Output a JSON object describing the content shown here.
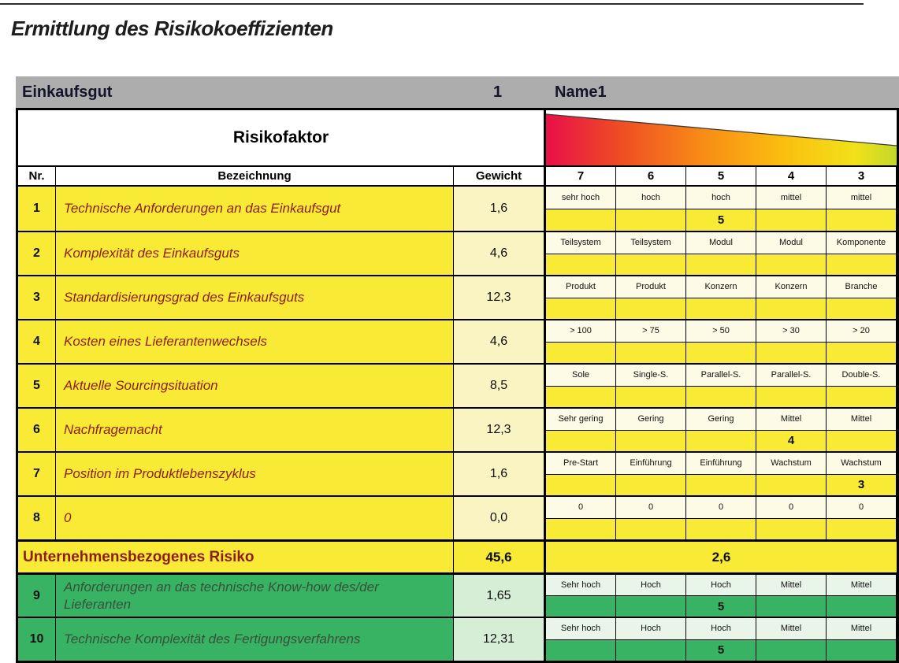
{
  "title": "Ermittlung des Risikokoeffizienten",
  "header_bar": {
    "label": "Einkaufsgut",
    "number": "1",
    "name": "Name1"
  },
  "table": {
    "section_title": "Risikofaktor",
    "col_nr": "Nr.",
    "col_bezeichnung": "Bezeichnung",
    "col_gewicht": "Gewicht",
    "scale": [
      "7",
      "6",
      "5",
      "4",
      "3"
    ],
    "rows": [
      {
        "nr": "1",
        "bezeichnung": "Technische Anforderungen an das Einkaufsgut",
        "gewicht": "1,6",
        "theme": "yellow",
        "labels": [
          "sehr hoch",
          "hoch",
          "hoch",
          "mittel",
          "mittel"
        ],
        "values": [
          "",
          "",
          "5",
          "",
          ""
        ]
      },
      {
        "nr": "2",
        "bezeichnung": "Komplexität des Einkaufsguts",
        "gewicht": "4,6",
        "theme": "yellow",
        "labels": [
          "Teilsystem",
          "Teilsystem",
          "Modul",
          "Modul",
          "Komponente"
        ],
        "values": [
          "",
          "",
          "",
          "",
          ""
        ]
      },
      {
        "nr": "3",
        "bezeichnung": "Standardisierungsgrad des Einkaufsguts",
        "gewicht": "12,3",
        "theme": "yellow",
        "labels": [
          "Produkt",
          "Produkt",
          "Konzern",
          "Konzern",
          "Branche"
        ],
        "values": [
          "",
          "",
          "",
          "",
          ""
        ]
      },
      {
        "nr": "4",
        "bezeichnung": "Kosten eines Lieferantenwechsels",
        "gewicht": "4,6",
        "theme": "yellow",
        "labels": [
          "> 100",
          "> 75",
          "> 50",
          "> 30",
          "> 20"
        ],
        "values": [
          "",
          "",
          "",
          "",
          ""
        ]
      },
      {
        "nr": "5",
        "bezeichnung": "Aktuelle Sourcingsituation",
        "gewicht": "8,5",
        "theme": "yellow",
        "labels": [
          "Sole",
          "Single-S.",
          "Parallel-S.",
          "Parallel-S.",
          "Double-S."
        ],
        "values": [
          "",
          "",
          "",
          "",
          ""
        ]
      },
      {
        "nr": "6",
        "bezeichnung": "Nachfragemacht",
        "gewicht": "12,3",
        "theme": "yellow",
        "labels": [
          "Sehr gering",
          "Gering",
          "Gering",
          "Mittel",
          "Mittel"
        ],
        "values": [
          "",
          "",
          "",
          "4",
          ""
        ]
      },
      {
        "nr": "7",
        "bezeichnung": "Position im Produktlebenszyklus",
        "gewicht": "1,6",
        "theme": "yellow",
        "labels": [
          "Pre-Start",
          "Einführung",
          "Einführung",
          "Wachstum",
          "Wachstum"
        ],
        "values": [
          "",
          "",
          "",
          "",
          "3"
        ]
      },
      {
        "nr": "8",
        "bezeichnung": "0",
        "gewicht": "0,0",
        "theme": "yellow",
        "labels": [
          "0",
          "0",
          "0",
          "0",
          "0"
        ],
        "values": [
          "",
          "",
          "",
          "",
          ""
        ]
      },
      {
        "nr": "9",
        "bezeichnung": "Anforderungen an das technische Know-how des/der Lieferanten",
        "gewicht": "1,65",
        "theme": "green",
        "labels": [
          "Sehr hoch",
          "Hoch",
          "Hoch",
          "Mittel",
          "Mittel"
        ],
        "values": [
          "",
          "",
          "5",
          "",
          ""
        ]
      },
      {
        "nr": "10",
        "bezeichnung": "Technische Komplexität des Fertigungsverfahrens",
        "gewicht": "12,31",
        "theme": "green",
        "labels": [
          "Sehr hoch",
          "Hoch",
          "Hoch",
          "Mittel",
          "Mittel"
        ],
        "values": [
          "",
          "",
          "5",
          "",
          ""
        ]
      }
    ],
    "summary": {
      "label": "Unternehmensbezogenes Risiko",
      "gewicht": "45,6",
      "value": "2,6"
    }
  },
  "colors": {
    "yellow": "#f8ea35",
    "yellow_pale": "#faf3c2",
    "yellow_pale2": "#fdfae6",
    "green": "#38b263",
    "green_pale": "#d6edd6",
    "green_pale2": "#eaf5ea",
    "gray_bar": "#adadad",
    "text_red": "#8e1d15",
    "text_green": "#37513b",
    "gradient": [
      "#e81048",
      "#ef4f23",
      "#f88c16",
      "#fbbf0f",
      "#f1e119",
      "#c3d82b"
    ]
  }
}
